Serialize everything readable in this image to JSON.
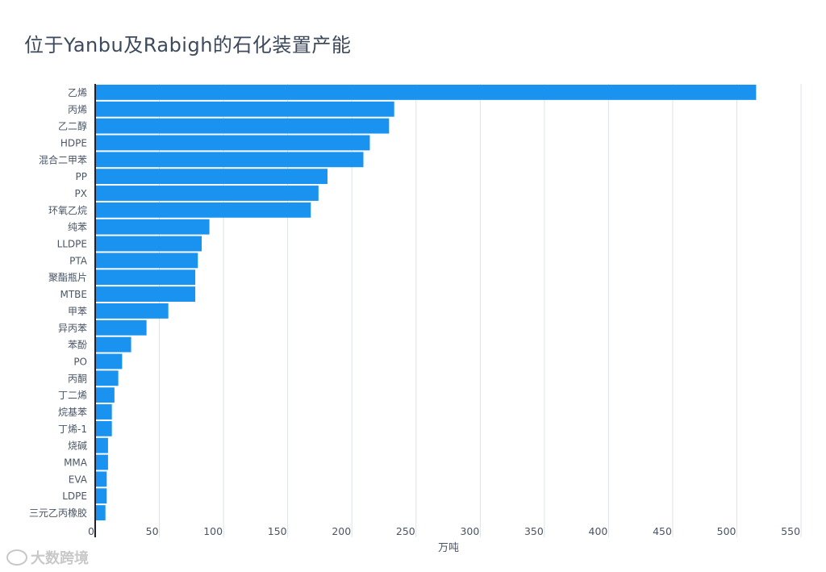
{
  "title": "位于Yanbu及Rabigh的石化装置产能",
  "watermark": "大数跨境",
  "chart_data": {
    "type": "bar",
    "orientation": "horizontal",
    "title": "位于Yanbu及Rabigh的石化装置产能",
    "xlabel": "万吨",
    "ylabel": "",
    "xlim": [
      0,
      550
    ],
    "xticks": [
      0,
      50,
      100,
      150,
      200,
      250,
      300,
      350,
      400,
      450,
      500,
      550
    ],
    "grid": true,
    "categories": [
      "乙烯",
      "丙烯",
      "乙二醇",
      "HDPE",
      "混合二甲苯",
      "PP",
      "PX",
      "环氧乙烷",
      "纯苯",
      "LLDPE",
      "PTA",
      "聚酯瓶片",
      "MTBE",
      "甲苯",
      "异丙苯",
      "苯酚",
      "PO",
      "丙酮",
      "丁二烯",
      "烷基苯",
      "丁烯-1",
      "烧碱",
      "MMA",
      "EVA",
      "LDPE",
      "三元乙丙橡胶"
    ],
    "values": [
      515,
      233,
      229,
      214,
      209,
      181,
      174,
      168,
      89,
      83,
      80,
      78,
      78,
      57,
      40,
      28,
      21,
      18,
      15,
      13,
      13,
      10,
      10,
      9,
      9,
      8
    ]
  }
}
